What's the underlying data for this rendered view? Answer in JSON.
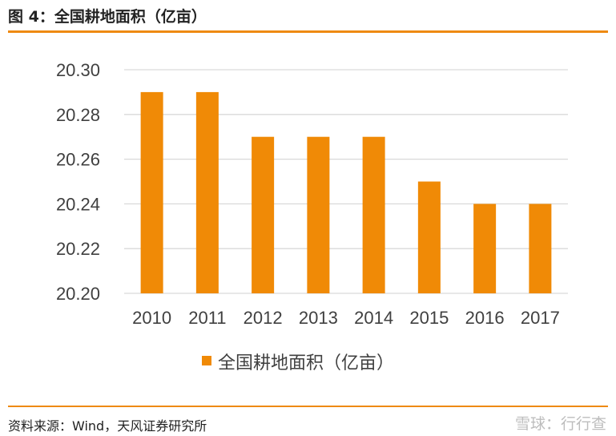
{
  "header": {
    "figure_title": "图 4：全国耕地面积（亿亩）"
  },
  "footer": {
    "source": "资料来源：Wind，天风证券研究所",
    "brand": "雪球：行行查"
  },
  "colors": {
    "accent": "#EE8A12",
    "bar": "#F08A06",
    "grid": "#D9D9D9",
    "text": "#404040"
  },
  "chart_data": {
    "type": "bar",
    "categories": [
      "2010",
      "2011",
      "2012",
      "2013",
      "2014",
      "2015",
      "2016",
      "2017"
    ],
    "series": [
      {
        "name": "全国耕地面积（亿亩）",
        "values": [
          20.29,
          20.29,
          20.27,
          20.27,
          20.27,
          20.25,
          20.24,
          20.24
        ]
      }
    ],
    "ylim": [
      20.2,
      20.3
    ],
    "yticks": [
      "20.20",
      "20.22",
      "20.24",
      "20.26",
      "20.28",
      "20.30"
    ],
    "grid": true,
    "legend_position": "bottom"
  }
}
